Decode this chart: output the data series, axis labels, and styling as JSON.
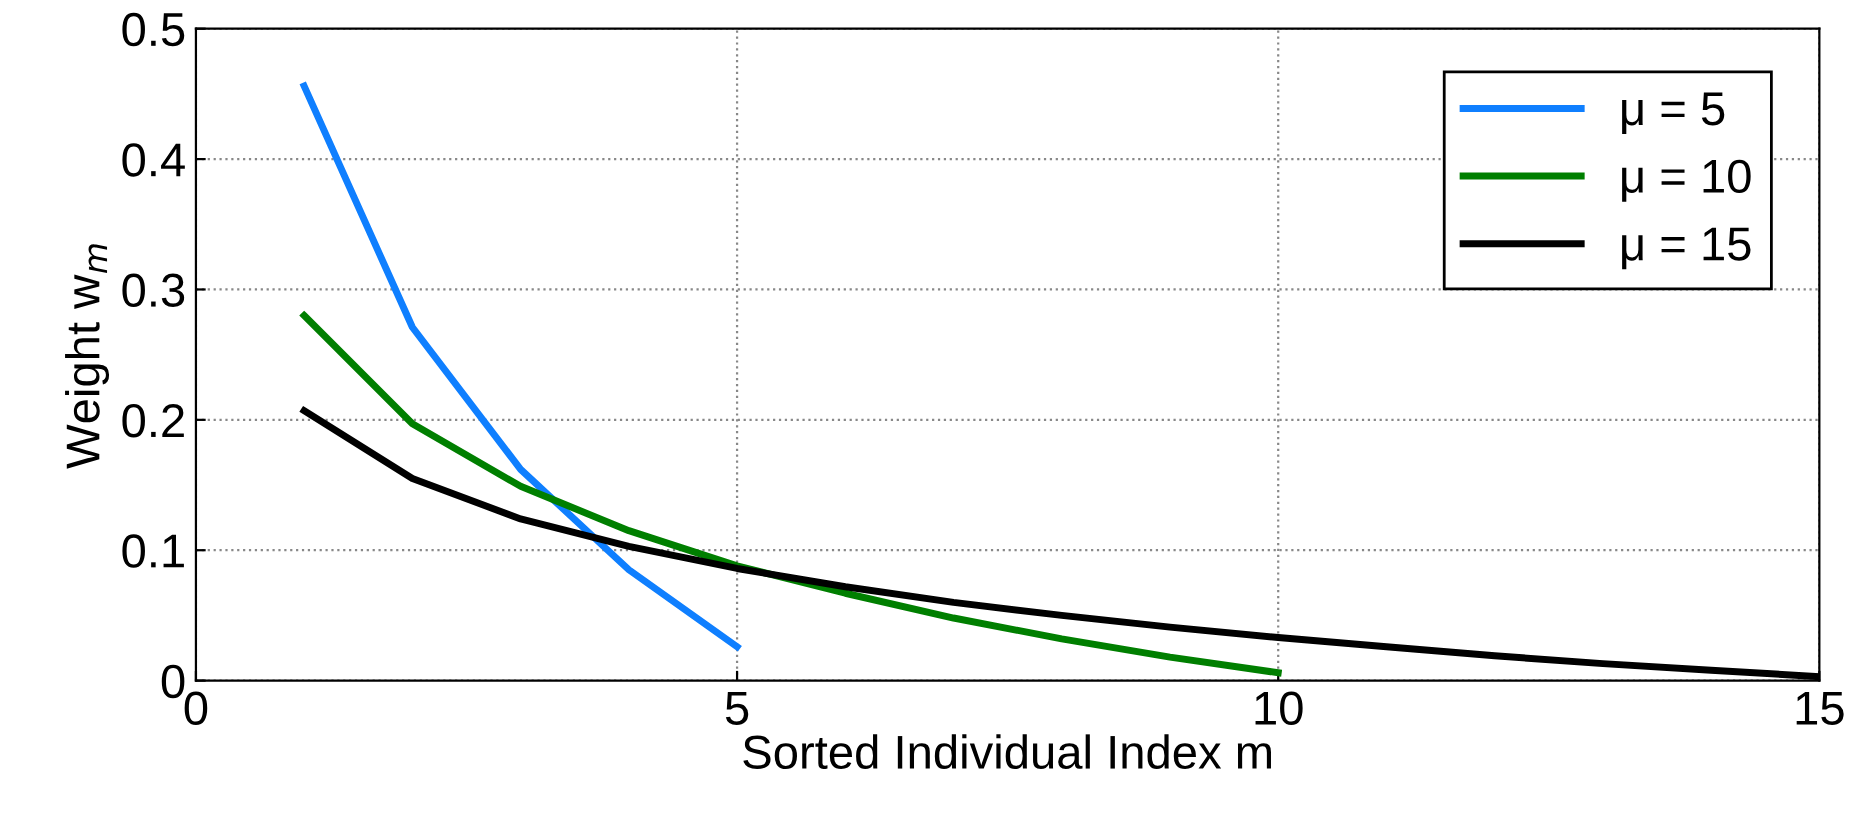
{
  "chart_data": {
    "type": "line",
    "xlabel": "Sorted Individual Index m",
    "ylabel": "Weight w$_{m}$",
    "series": [
      {
        "name": "μ = 5",
        "color": "#0f7fff",
        "x": [
          1,
          2,
          3,
          4,
          5
        ],
        "values": [
          0.456,
          0.271,
          0.162,
          0.085,
          0.026
        ]
      },
      {
        "name": "μ = 10",
        "color": "#007f00",
        "x": [
          1,
          2,
          3,
          4,
          5,
          6,
          7,
          8,
          9,
          10
        ],
        "values": [
          0.28,
          0.197,
          0.149,
          0.115,
          0.088,
          0.067,
          0.048,
          0.032,
          0.018,
          0.006
        ]
      },
      {
        "name": "μ = 15",
        "color": "#000000",
        "x": [
          1,
          2,
          3,
          4,
          5,
          6,
          7,
          8,
          9,
          10,
          11,
          12,
          13,
          14,
          15
        ],
        "values": [
          0.207,
          0.155,
          0.124,
          0.103,
          0.086,
          0.072,
          0.06,
          0.05,
          0.041,
          0.033,
          0.026,
          0.019,
          0.013,
          0.008,
          0.003
        ]
      }
    ],
    "xlim": [
      0,
      15
    ],
    "ylim": [
      0,
      0.5
    ],
    "xticks": [
      0,
      5,
      10,
      15
    ],
    "yticks": [
      0,
      0.1,
      0.2,
      0.3,
      0.4,
      0.5
    ],
    "grid": true,
    "legend": "top right",
    "marker": "none",
    "line_style": "solid"
  }
}
